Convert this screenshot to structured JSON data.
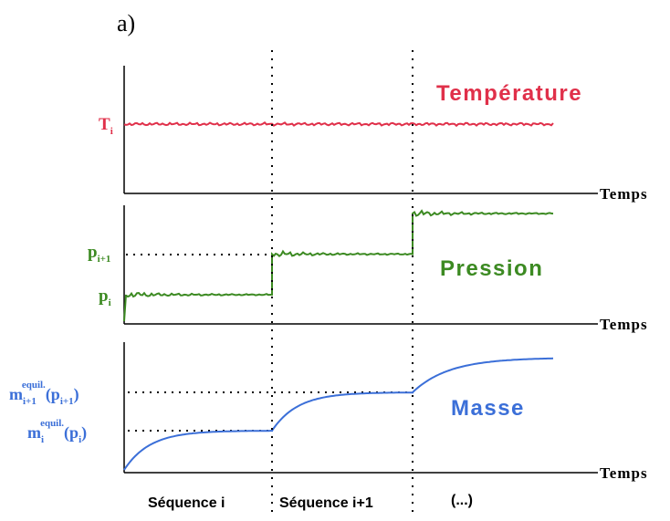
{
  "figure_label": "a)",
  "colors": {
    "temperature": "#e0304a",
    "pression": "#3c8a22",
    "masse": "#3b6fd8",
    "axis": "#000000"
  },
  "chart_data": [
    {
      "type": "line",
      "title": "Température",
      "xlabel": "Temps",
      "ylabel": "",
      "y_tick_labels": [
        {
          "base": "T",
          "sub": "i"
        }
      ],
      "grid": false,
      "series": [
        {
          "name": "Température",
          "x": [
            0,
            1,
            2,
            3
          ],
          "y": [
            1,
            1,
            1,
            1
          ]
        }
      ]
    },
    {
      "type": "line",
      "title": "Pression",
      "xlabel": "Temps",
      "ylabel": "",
      "y_tick_labels": [
        {
          "base": "p",
          "sub": "i+1"
        },
        {
          "base": "p",
          "sub": "i"
        }
      ],
      "grid": false,
      "series": [
        {
          "name": "Pression",
          "x": [
            0,
            1,
            1,
            2,
            2,
            3
          ],
          "y": [
            1,
            1,
            2,
            2,
            3,
            3
          ]
        }
      ]
    },
    {
      "type": "line",
      "title": "Masse",
      "xlabel": "Temps",
      "ylabel": "",
      "y_tick_labels": [
        {
          "base": "m",
          "sub": "i+1",
          "sup": "equil.",
          "arg": "(p",
          "argsub": "i+1",
          "close": ")"
        },
        {
          "base": "m",
          "sub": "i",
          "sup": "equil.",
          "arg": "(p",
          "argsub": "i",
          "close": ")"
        }
      ],
      "grid": false,
      "series": [
        {
          "name": "Masse",
          "x": [
            0,
            1,
            2,
            3
          ],
          "y": [
            0,
            1,
            2,
            2.6
          ]
        }
      ]
    }
  ],
  "sequences": [
    "Séquence i",
    "Séquence i+1",
    "(...)"
  ]
}
